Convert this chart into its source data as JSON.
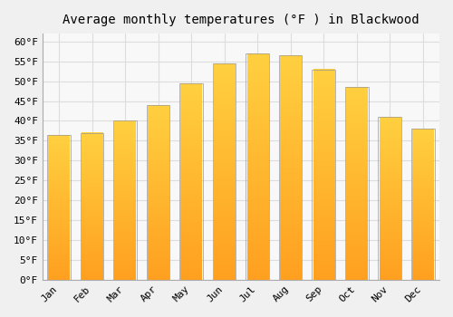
{
  "title": "Average monthly temperatures (°F ) in Blackwood",
  "months": [
    "Jan",
    "Feb",
    "Mar",
    "Apr",
    "May",
    "Jun",
    "Jul",
    "Aug",
    "Sep",
    "Oct",
    "Nov",
    "Dec"
  ],
  "values": [
    36.5,
    37.0,
    40.0,
    44.0,
    49.5,
    54.5,
    57.0,
    56.5,
    53.0,
    48.5,
    41.0,
    38.0
  ],
  "bar_color_bright": "#FFD040",
  "bar_color_orange": "#FFA020",
  "bar_edge_color": "#999999",
  "ylim": [
    0,
    62
  ],
  "yticks": [
    0,
    5,
    10,
    15,
    20,
    25,
    30,
    35,
    40,
    45,
    50,
    55,
    60
  ],
  "background_color": "#F0F0F0",
  "plot_bg_color": "#F8F8F8",
  "grid_color": "#DDDDDD",
  "title_fontsize": 10,
  "tick_fontsize": 8,
  "font_family": "monospace"
}
